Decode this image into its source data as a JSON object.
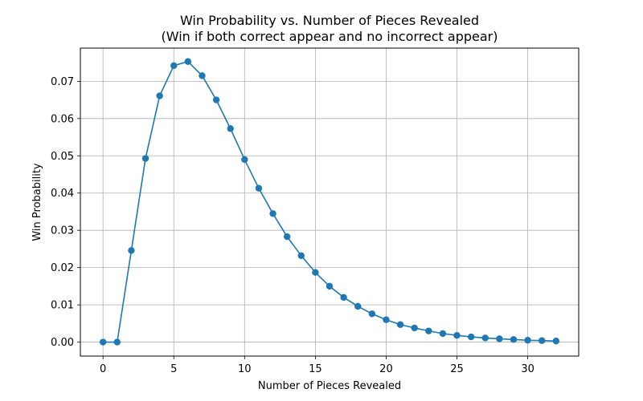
{
  "chart_data": {
    "type": "line",
    "title": "Win Probability vs. Number of Pieces Revealed",
    "subtitle": "(Win if both correct appear and no incorrect appear)",
    "xlabel": "Number of Pieces Revealed",
    "ylabel": "Win Probability",
    "xlim": [
      -1.6,
      33.6
    ],
    "ylim": [
      -0.00375,
      0.0789
    ],
    "xticks": [
      0,
      5,
      10,
      15,
      20,
      25,
      30
    ],
    "xtick_labels": [
      "0",
      "5",
      "10",
      "15",
      "20",
      "25",
      "30"
    ],
    "yticks": [
      0.0,
      0.01,
      0.02,
      0.03,
      0.04,
      0.05,
      0.06,
      0.07
    ],
    "ytick_labels": [
      "0.00",
      "0.01",
      "0.02",
      "0.03",
      "0.04",
      "0.05",
      "0.06",
      "0.07"
    ],
    "grid": true,
    "color": "#1f77b4",
    "series": [
      {
        "x": [
          0,
          1,
          2,
          3,
          4,
          5,
          6,
          7,
          8,
          9,
          10,
          11,
          12,
          13,
          14,
          15,
          16,
          17,
          18,
          19,
          20,
          21,
          22,
          23,
          24,
          25,
          26,
          27,
          28,
          29,
          30,
          31,
          32
        ],
        "values": [
          0.0,
          0.0,
          0.0246,
          0.0493,
          0.0661,
          0.0742,
          0.0753,
          0.0715,
          0.065,
          0.0573,
          0.049,
          0.0413,
          0.0345,
          0.0283,
          0.0232,
          0.0187,
          0.015,
          0.012,
          0.0096,
          0.0076,
          0.006,
          0.0047,
          0.0038,
          0.003,
          0.0023,
          0.0018,
          0.0014,
          0.0011,
          0.0009,
          0.0007,
          0.0005,
          0.0004,
          0.0003
        ]
      }
    ]
  }
}
